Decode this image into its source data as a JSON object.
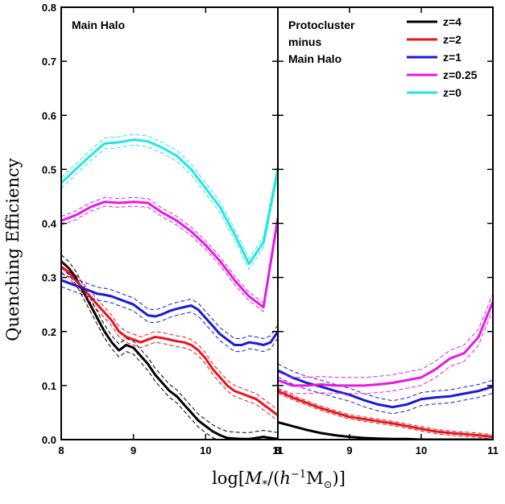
{
  "chart_data": {
    "type": "line",
    "ylabel": "Quenching Efficiency",
    "xlabel": "log[M_*/(h^-1 M_⊙)]",
    "xlabel_parts": {
      "log_open": "log[",
      "m": "M",
      "star": "*",
      "slash": "/(",
      "h": "h",
      "exp": "−1",
      "msun": "M",
      "sun": "⊙",
      "close": ")]"
    },
    "ylim": [
      0.0,
      0.8
    ],
    "yticks": [
      "0.0",
      "0.1",
      "0.2",
      "0.3",
      "0.4",
      "0.5",
      "0.6",
      "0.7",
      "0.8"
    ],
    "legend_position": "top-right",
    "legend": [
      {
        "label": "z=4",
        "color": "#000000"
      },
      {
        "label": "z=2",
        "color": "#e8141b"
      },
      {
        "label": "z=1",
        "color": "#1a1ad6"
      },
      {
        "label": "z=0.25",
        "color": "#e817e8"
      },
      {
        "label": "z=0",
        "color": "#22e6e6"
      }
    ],
    "panels": [
      {
        "label": "Main Halo",
        "xlim": [
          8,
          11
        ],
        "xticks": [
          "8",
          "9",
          "10",
          "11"
        ],
        "series": [
          {
            "name": "z=4",
            "color": "#000000",
            "x": [
              8.0,
              8.1,
              8.2,
              8.3,
              8.4,
              8.5,
              8.6,
              8.7,
              8.8,
              8.9,
              9.0,
              9.1,
              9.2,
              9.3,
              9.4,
              9.5,
              9.6,
              9.7,
              9.8,
              9.9,
              10.0,
              10.1,
              10.2,
              10.3,
              10.4,
              10.5,
              10.6,
              10.7,
              10.8,
              10.9,
              11.0
            ],
            "y": [
              0.33,
              0.318,
              0.3,
              0.275,
              0.25,
              0.225,
              0.2,
              0.18,
              0.165,
              0.175,
              0.17,
              0.155,
              0.14,
              0.12,
              0.105,
              0.09,
              0.08,
              0.065,
              0.05,
              0.035,
              0.025,
              0.015,
              0.008,
              0.003,
              0.002,
              0.001,
              0.001,
              0.003,
              0.005,
              0.003,
              0.001
            ],
            "band": 0.012
          },
          {
            "name": "z=2",
            "color": "#e8141b",
            "x": [
              8.0,
              8.1,
              8.2,
              8.3,
              8.4,
              8.5,
              8.6,
              8.7,
              8.8,
              8.9,
              9.0,
              9.1,
              9.2,
              9.3,
              9.4,
              9.5,
              9.6,
              9.7,
              9.8,
              9.9,
              10.0,
              10.1,
              10.2,
              10.3,
              10.4,
              10.5,
              10.6,
              10.7,
              10.8,
              10.9,
              11.0
            ],
            "y": [
              0.32,
              0.31,
              0.295,
              0.28,
              0.265,
              0.25,
              0.235,
              0.22,
              0.2,
              0.19,
              0.185,
              0.18,
              0.185,
              0.19,
              0.188,
              0.185,
              0.182,
              0.18,
              0.175,
              0.165,
              0.15,
              0.13,
              0.115,
              0.1,
              0.09,
              0.085,
              0.08,
              0.075,
              0.065,
              0.055,
              0.045
            ],
            "band": 0.01
          },
          {
            "name": "z=1",
            "color": "#1a1ad6",
            "x": [
              8.0,
              8.1,
              8.2,
              8.3,
              8.4,
              8.5,
              8.6,
              8.7,
              8.8,
              8.9,
              9.0,
              9.1,
              9.2,
              9.3,
              9.4,
              9.5,
              9.6,
              9.7,
              9.8,
              9.9,
              10.0,
              10.1,
              10.2,
              10.3,
              10.4,
              10.5,
              10.6,
              10.7,
              10.8,
              10.9,
              11.0
            ],
            "y": [
              0.295,
              0.29,
              0.285,
              0.28,
              0.275,
              0.27,
              0.268,
              0.265,
              0.26,
              0.255,
              0.25,
              0.24,
              0.23,
              0.228,
              0.232,
              0.238,
              0.242,
              0.245,
              0.248,
              0.24,
              0.225,
              0.21,
              0.195,
              0.185,
              0.175,
              0.175,
              0.18,
              0.178,
              0.175,
              0.18,
              0.2
            ],
            "band": 0.012
          },
          {
            "name": "z=0.25",
            "color": "#e817e8",
            "x": [
              8.0,
              8.2,
              8.4,
              8.6,
              8.8,
              9.0,
              9.2,
              9.4,
              9.6,
              9.8,
              10.0,
              10.2,
              10.4,
              10.6,
              10.8,
              11.0
            ],
            "y": [
              0.405,
              0.415,
              0.43,
              0.44,
              0.438,
              0.44,
              0.438,
              0.42,
              0.405,
              0.385,
              0.36,
              0.33,
              0.295,
              0.265,
              0.245,
              0.41
            ],
            "band": 0.008
          },
          {
            "name": "z=0",
            "color": "#22e6e6",
            "x": [
              8.0,
              8.2,
              8.4,
              8.6,
              8.8,
              9.0,
              9.2,
              9.4,
              9.6,
              9.8,
              10.0,
              10.2,
              10.4,
              10.6,
              10.8,
              11.0
            ],
            "y": [
              0.475,
              0.5,
              0.525,
              0.548,
              0.55,
              0.555,
              0.552,
              0.54,
              0.525,
              0.5,
              0.465,
              0.43,
              0.38,
              0.325,
              0.365,
              0.5
            ],
            "band": 0.01
          }
        ]
      },
      {
        "label": "Protocluster minus Main Halo",
        "label_lines": [
          "Protocluster",
          "minus",
          "Main Halo"
        ],
        "xlim": [
          8,
          11
        ],
        "xticks": [
          "8",
          "9",
          "10",
          "11"
        ],
        "series": [
          {
            "name": "z=4",
            "color": "#000000",
            "x": [
              8.0,
              8.2,
              8.4,
              8.6,
              8.8,
              9.0,
              9.2,
              9.4,
              9.6,
              9.8,
              10.0,
              10.2,
              10.4,
              10.6,
              10.8,
              11.0
            ],
            "y": [
              0.032,
              0.025,
              0.018,
              0.012,
              0.008,
              0.005,
              0.003,
              0.002,
              0.001,
              0.001,
              0.0,
              0.0,
              0.0,
              0.0,
              0.0,
              0.0
            ],
            "band": 0.0
          },
          {
            "name": "z=2",
            "color": "#e8141b",
            "x": [
              8.0,
              8.2,
              8.4,
              8.6,
              8.8,
              9.0,
              9.2,
              9.4,
              9.6,
              9.8,
              10.0,
              10.2,
              10.4,
              10.6,
              10.8,
              11.0
            ],
            "y": [
              0.09,
              0.078,
              0.068,
              0.058,
              0.05,
              0.042,
              0.038,
              0.034,
              0.03,
              0.025,
              0.02,
              0.015,
              0.012,
              0.01,
              0.008,
              0.005
            ],
            "band": 0.004
          },
          {
            "name": "z=1",
            "color": "#1a1ad6",
            "x": [
              8.0,
              8.2,
              8.4,
              8.6,
              8.8,
              9.0,
              9.2,
              9.4,
              9.6,
              9.8,
              10.0,
              10.2,
              10.4,
              10.6,
              10.8,
              11.0
            ],
            "y": [
              0.128,
              0.115,
              0.105,
              0.098,
              0.09,
              0.083,
              0.073,
              0.065,
              0.06,
              0.065,
              0.075,
              0.078,
              0.08,
              0.085,
              0.09,
              0.098
            ],
            "band": 0.012
          },
          {
            "name": "z=0.25",
            "color": "#e817e8",
            "x": [
              8.0,
              8.2,
              8.4,
              8.6,
              8.8,
              9.0,
              9.2,
              9.4,
              9.6,
              9.8,
              10.0,
              10.2,
              10.4,
              10.6,
              10.8,
              11.0
            ],
            "y": [
              0.11,
              0.1,
              0.1,
              0.102,
              0.1,
              0.1,
              0.1,
              0.102,
              0.105,
              0.11,
              0.115,
              0.13,
              0.15,
              0.16,
              0.19,
              0.255
            ],
            "band": 0.015
          }
        ]
      }
    ]
  }
}
